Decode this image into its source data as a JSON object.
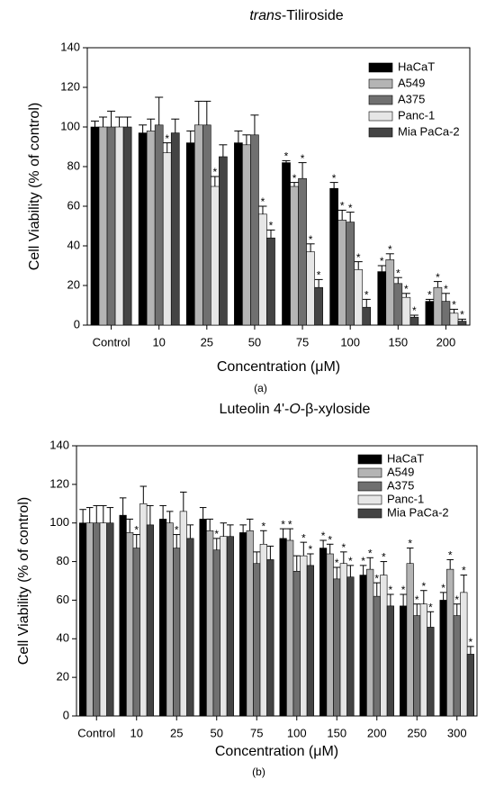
{
  "chart_data": [
    {
      "type": "bar",
      "title": [
        {
          "text": "trans",
          "italic": true
        },
        {
          "text": "-Tiliroside",
          "italic": false
        }
      ],
      "caption": "(a)",
      "x_label": "Concentration (μM)",
      "y_label": "Cell Viability (% of control)",
      "categories": [
        "Control",
        "10",
        "25",
        "50",
        "75",
        "100",
        "150",
        "200"
      ],
      "ylim": [
        0,
        140
      ],
      "yticks": [
        0,
        20,
        40,
        60,
        80,
        100,
        120,
        140
      ],
      "legend": "upper right",
      "series": [
        {
          "name": "HaCaT",
          "color": "#000000",
          "values": [
            100,
            97,
            92,
            92,
            82,
            69,
            27,
            12
          ],
          "errors": [
            3,
            4,
            6,
            6,
            1,
            3,
            3,
            1
          ],
          "annotations": [
            null,
            null,
            null,
            null,
            "*",
            "*",
            "*",
            "*"
          ]
        },
        {
          "name": "A549",
          "color": "#b4b4b4",
          "values": [
            100,
            98,
            101,
            91,
            70,
            53,
            33,
            19
          ],
          "errors": [
            5,
            6,
            12,
            5,
            2,
            5,
            3,
            3
          ],
          "annotations": [
            null,
            null,
            null,
            null,
            "*",
            "*",
            "*",
            "*"
          ]
        },
        {
          "name": "A375",
          "color": "#707070",
          "values": [
            100,
            101,
            101,
            96,
            74,
            52,
            21,
            12
          ],
          "errors": [
            8,
            14,
            12,
            10,
            8,
            5,
            3,
            4
          ],
          "annotations": [
            null,
            null,
            null,
            null,
            "*",
            "*",
            "*",
            "*"
          ]
        },
        {
          "name": "Panc-1",
          "color": "#e6e6e6",
          "values": [
            100,
            87,
            70,
            56,
            37,
            28,
            14,
            6
          ],
          "errors": [
            5,
            5,
            5,
            4,
            4,
            4,
            2,
            2
          ],
          "annotations": [
            null,
            "*",
            "*",
            "*",
            "*",
            "*",
            "*",
            "*"
          ]
        },
        {
          "name": "Mia PaCa-2",
          "color": "#444444",
          "values": [
            100,
            97,
            85,
            44,
            19,
            9,
            4,
            2
          ],
          "errors": [
            5,
            7,
            6,
            4,
            4,
            4,
            1,
            1
          ],
          "annotations": [
            null,
            null,
            null,
            "*",
            "*",
            "*",
            "*",
            "*"
          ]
        }
      ]
    },
    {
      "type": "bar",
      "title": [
        {
          "text": "Luteolin 4'-",
          "italic": false
        },
        {
          "text": "O",
          "italic": true
        },
        {
          "text": "-β-xyloside",
          "italic": false
        }
      ],
      "caption": "(b)",
      "x_label": "Concentration (μM)",
      "y_label": "Cell Viability (% of control)",
      "categories": [
        "Control",
        "10",
        "25",
        "50",
        "75",
        "100",
        "150",
        "200",
        "250",
        "300"
      ],
      "ylim": [
        0,
        140
      ],
      "yticks": [
        0,
        20,
        40,
        60,
        80,
        100,
        120,
        140
      ],
      "legend": "upper right",
      "series": [
        {
          "name": "HaCaT",
          "color": "#000000",
          "values": [
            100,
            104,
            102,
            102,
            95,
            92,
            87,
            73,
            57,
            60
          ],
          "errors": [
            7,
            9,
            7,
            6,
            4,
            5,
            4,
            5,
            6,
            4
          ],
          "annotations": [
            null,
            null,
            null,
            null,
            null,
            "*",
            "*",
            "*",
            "*",
            "*"
          ]
        },
        {
          "name": "A549",
          "color": "#b4b4b4",
          "values": [
            100,
            95,
            100,
            96,
            96,
            91,
            84,
            76,
            79,
            76
          ],
          "errors": [
            8,
            7,
            6,
            6,
            6,
            6,
            5,
            6,
            8,
            5
          ],
          "annotations": [
            null,
            null,
            null,
            null,
            null,
            "*",
            "*",
            "*",
            "*",
            "*"
          ]
        },
        {
          "name": "A375",
          "color": "#707070",
          "values": [
            100,
            87,
            87,
            86,
            79,
            75,
            71,
            62,
            52,
            52
          ],
          "errors": [
            9,
            7,
            7,
            6,
            6,
            8,
            6,
            7,
            6,
            6
          ],
          "annotations": [
            null,
            "*",
            "*",
            "*",
            null,
            null,
            "*",
            "*",
            "*",
            "*"
          ]
        },
        {
          "name": "Panc-1",
          "color": "#e6e6e6",
          "values": [
            100,
            110,
            106,
            93,
            89,
            83,
            79,
            73,
            58,
            64
          ],
          "errors": [
            9,
            9,
            10,
            7,
            7,
            7,
            6,
            7,
            7,
            9
          ],
          "annotations": [
            null,
            null,
            null,
            null,
            "*",
            "*",
            "*",
            "*",
            "*",
            "*"
          ]
        },
        {
          "name": "Mia PaCa-2",
          "color": "#444444",
          "values": [
            100,
            99,
            92,
            93,
            81,
            78,
            72,
            57,
            46,
            32
          ],
          "errors": [
            8,
            10,
            7,
            6,
            7,
            6,
            6,
            6,
            8,
            4
          ],
          "annotations": [
            null,
            null,
            null,
            null,
            null,
            "*",
            "*",
            "*",
            "*",
            "*"
          ]
        }
      ]
    }
  ]
}
